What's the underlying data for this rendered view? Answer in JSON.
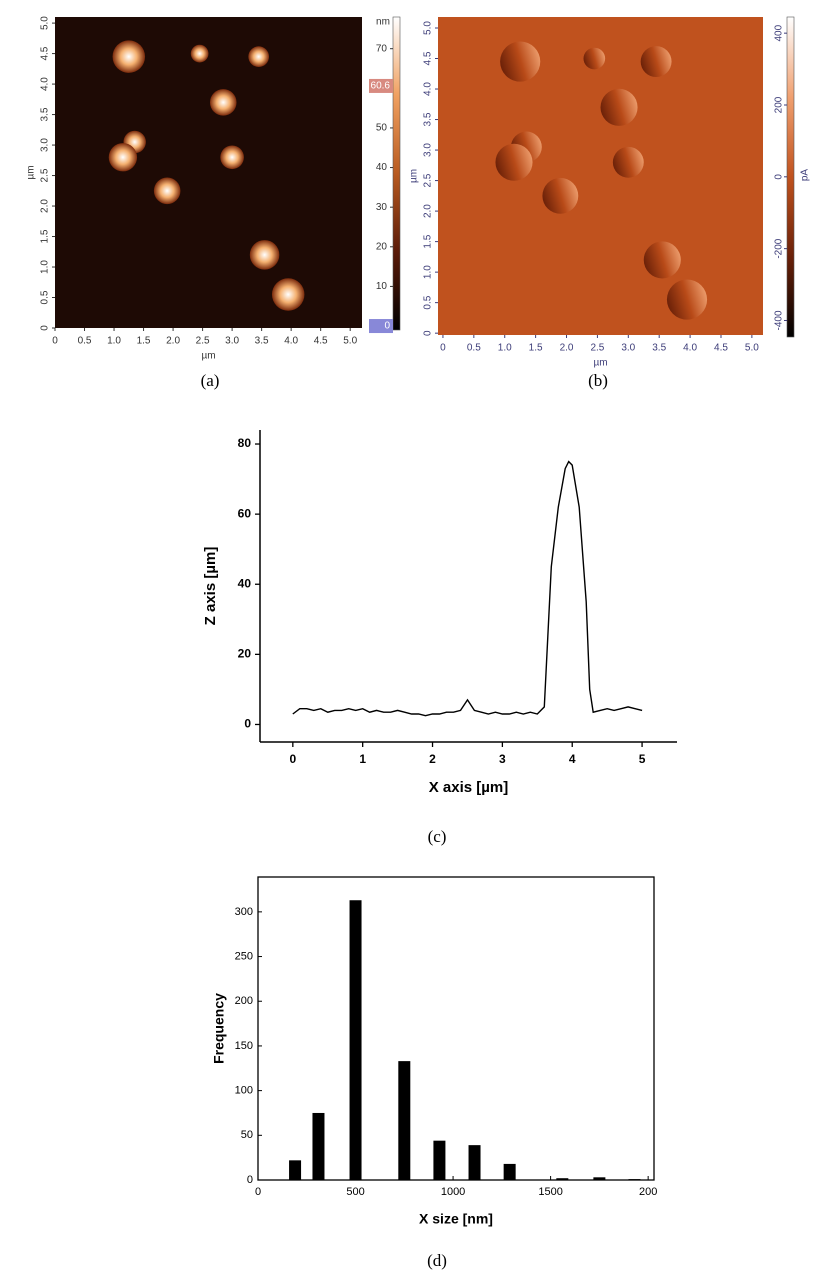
{
  "chart_data": [
    {
      "type": "image",
      "caption": "(a)",
      "xlabel": "µm",
      "ylabel": "µm",
      "xlim": [
        0,
        5.2
      ],
      "ylim": [
        0,
        5.1
      ],
      "xticks": [
        0,
        0.5,
        {
          "value": 1,
          "label": "1.0"
        },
        1.5,
        {
          "value": 2,
          "label": "2.0"
        },
        2.5,
        {
          "value": 3,
          "label": "3.0"
        },
        3.5,
        {
          "value": 4,
          "label": "4.0"
        },
        4.5,
        {
          "value": 5,
          "label": "5.0"
        }
      ],
      "yticks": [
        0,
        0.5,
        {
          "value": 1,
          "label": "1.0"
        },
        1.5,
        {
          "value": 2,
          "label": "2.0"
        },
        2.5,
        {
          "value": 3,
          "label": "3.0"
        },
        3.5,
        {
          "value": 4,
          "label": "4.0"
        },
        4.5,
        {
          "value": 5,
          "label": "5.0"
        }
      ],
      "background": "#1e0a05",
      "particle_colors": [
        "#ffffff",
        "#f4b070",
        "#7a2a0c"
      ],
      "tick_color": "#333333",
      "particles": {
        "x": [
          1.25,
          2.45,
          3.45,
          2.85,
          1.35,
          1.15,
          3.0,
          1.9,
          3.55,
          3.95
        ],
        "y": [
          4.45,
          4.5,
          4.45,
          3.7,
          3.05,
          2.8,
          2.8,
          2.25,
          1.2,
          0.55
        ],
        "size": [
          0.55,
          0.3,
          0.35,
          0.45,
          0.38,
          0.48,
          0.4,
          0.45,
          0.5,
          0.55
        ]
      },
      "colorbar": {
        "unit": "nm",
        "lim": [
          -1,
          78
        ],
        "ticks": [
          0,
          10,
          20,
          30,
          40,
          50,
          60,
          70
        ],
        "colors": [
          "#000000",
          "#5a1a08",
          "#b85a20",
          "#f0a060",
          "#ffffff"
        ],
        "markers": [
          60.6,
          0
        ],
        "marker_colors": [
          "#d88a80",
          "#8888d8"
        ]
      }
    },
    {
      "type": "image",
      "caption": "(b)",
      "xlabel": "µm",
      "ylabel": "µm",
      "xlim": [
        -0.08,
        5.18
      ],
      "ylim": [
        -0.03,
        5.18
      ],
      "xticks": [
        0,
        0.5,
        {
          "value": 1,
          "label": "1.0"
        },
        1.5,
        {
          "value": 2,
          "label": "2.0"
        },
        2.5,
        {
          "value": 3,
          "label": "3.0"
        },
        3.5,
        {
          "value": 4,
          "label": "4.0"
        },
        4.5,
        {
          "value": 5,
          "label": "5.0"
        }
      ],
      "yticks": [
        0,
        0.5,
        {
          "value": 1,
          "label": "1.0"
        },
        1.5,
        {
          "value": 2,
          "label": "2.0"
        },
        2.5,
        {
          "value": 3,
          "label": "3.0"
        },
        3.5,
        {
          "value": 4,
          "label": "4.0"
        },
        4.5,
        {
          "value": 5,
          "label": "5.0"
        }
      ],
      "background": "#c0521e",
      "particle_colors": [
        "#6a2008",
        "#b84a18",
        "#eea070"
      ],
      "tick_color": "#3c3c78",
      "particles": {
        "x": [
          1.25,
          2.45,
          3.45,
          2.85,
          1.35,
          1.15,
          3.0,
          1.9,
          3.55,
          3.95
        ],
        "y": [
          4.45,
          4.5,
          4.45,
          3.7,
          3.05,
          2.8,
          2.8,
          2.25,
          1.2,
          0.55
        ],
        "size": [
          0.65,
          0.35,
          0.5,
          0.6,
          0.5,
          0.6,
          0.5,
          0.58,
          0.6,
          0.65
        ]
      },
      "colorbar": {
        "unit": "pA",
        "lim": [
          -446,
          445
        ],
        "ticks": [
          -400,
          -200,
          0,
          200,
          400
        ],
        "colors": [
          "#000000",
          "#6a2008",
          "#c0521e",
          "#f0a070",
          "#ffffff"
        ],
        "markers": [],
        "marker_colors": []
      }
    },
    {
      "type": "line",
      "caption": "(c)",
      "xlabel": "X axis [µm]",
      "ylabel": "Z axis [µm]",
      "xlim": [
        -0.47,
        5.5
      ],
      "ylim": [
        -5,
        84
      ],
      "xticks": [
        0,
        1,
        2,
        3,
        4,
        5
      ],
      "yticks": [
        0,
        20,
        40,
        60,
        80
      ],
      "color": "#000000",
      "x": [
        0,
        0.1,
        0.2,
        0.3,
        0.4,
        0.5,
        0.6,
        0.7,
        0.8,
        0.9,
        1.0,
        1.1,
        1.2,
        1.3,
        1.4,
        1.5,
        1.6,
        1.7,
        1.8,
        1.9,
        2.0,
        2.1,
        2.2,
        2.3,
        2.4,
        2.5,
        2.6,
        2.7,
        2.8,
        2.9,
        3.0,
        3.1,
        3.2,
        3.3,
        3.4,
        3.5,
        3.6,
        3.65,
        3.7,
        3.8,
        3.9,
        3.95,
        4.0,
        4.1,
        4.2,
        4.25,
        4.3,
        4.4,
        4.5,
        4.6,
        4.7,
        4.8,
        4.9,
        5.0
      ],
      "values": [
        3,
        4.5,
        4.5,
        4,
        4.5,
        3.5,
        4,
        4,
        4.5,
        4,
        4.5,
        3.5,
        4,
        3.5,
        3.5,
        4,
        3.5,
        3,
        3,
        2.5,
        3,
        3,
        3.5,
        3.5,
        4,
        7,
        4,
        3.5,
        3,
        3.5,
        3,
        3,
        3.5,
        3,
        3.5,
        3,
        5,
        25,
        45,
        62,
        73,
        75,
        74,
        62,
        35,
        10,
        3.5,
        4,
        4.5,
        4,
        4.5,
        5,
        4.5,
        4
      ]
    },
    {
      "type": "bar",
      "caption": "(d)",
      "xlabel": "X size [nm]",
      "ylabel": "Frequency",
      "xlim": [
        0,
        2030
      ],
      "ylim": [
        0,
        339
      ],
      "xticks": [
        0,
        500,
        1000,
        1500,
        {
          "value": 2000,
          "label": "200"
        }
      ],
      "yticks": [
        0,
        50,
        100,
        150,
        200,
        250,
        300
      ],
      "color": "#000000",
      "x": [
        190,
        310,
        500,
        750,
        930,
        1110,
        1290,
        1560,
        1750,
        1930
      ],
      "values": [
        22,
        75,
        313,
        133,
        44,
        39,
        18,
        2,
        3,
        1
      ]
    }
  ]
}
